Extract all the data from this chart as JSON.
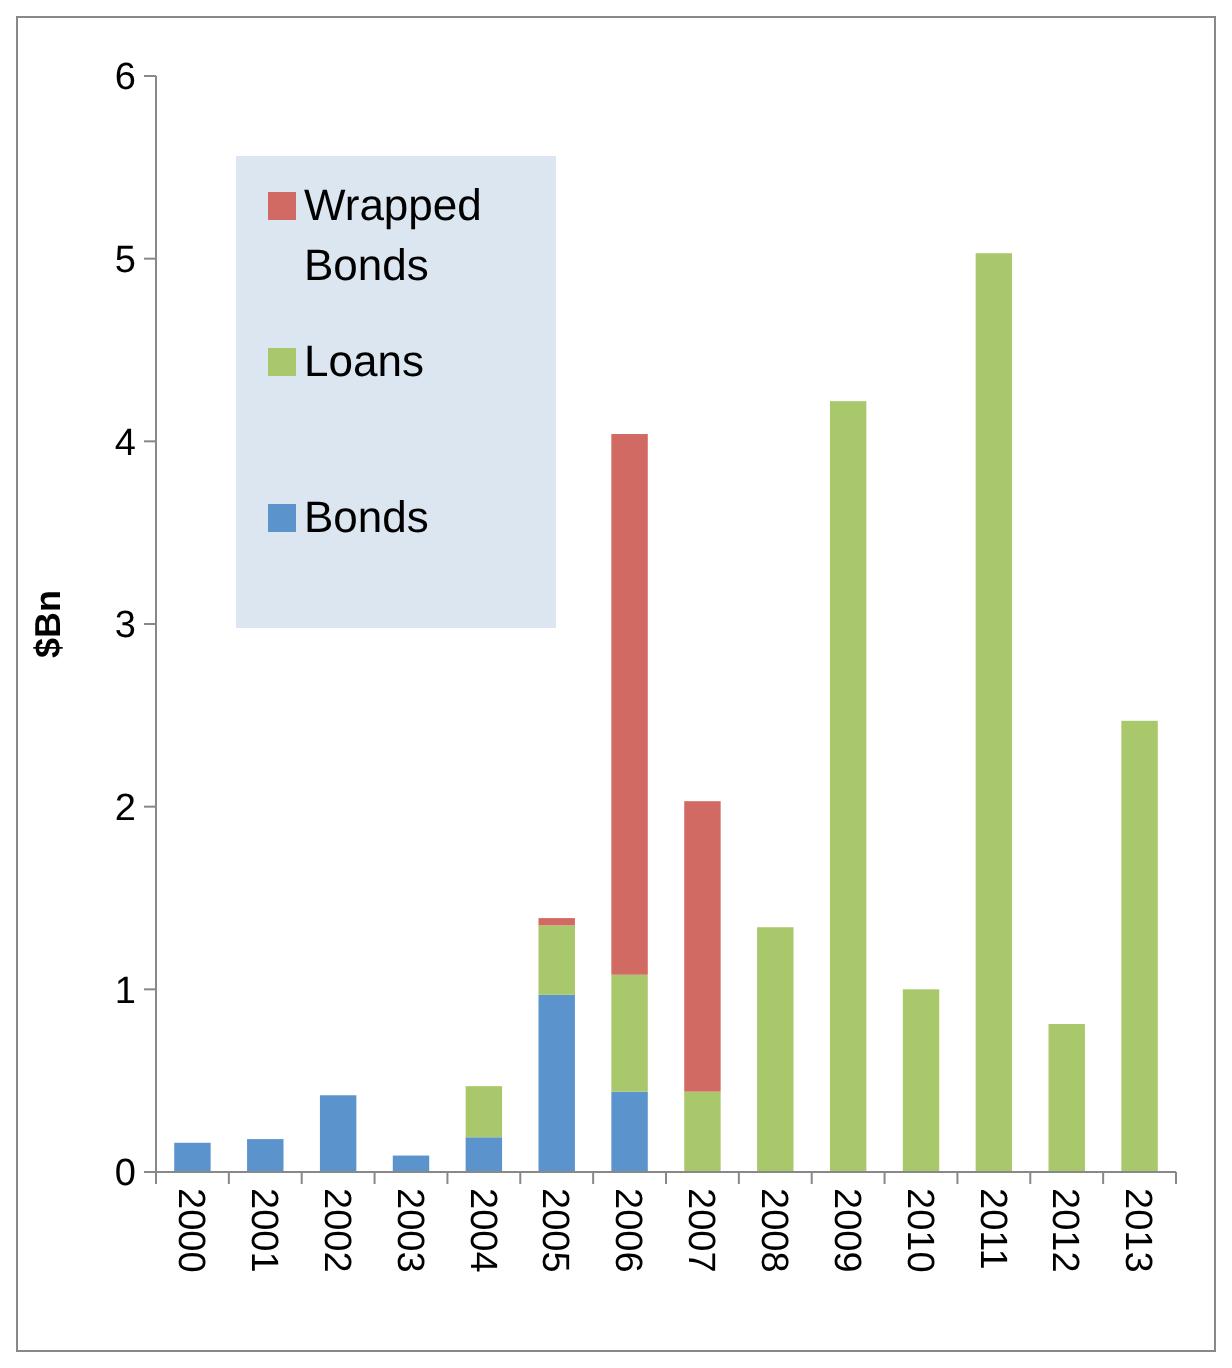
{
  "chart_data": {
    "type": "bar",
    "stacked": true,
    "ylabel": "$Bn",
    "categories": [
      "2000",
      "2001",
      "2002",
      "2003",
      "2004",
      "2005",
      "2006",
      "2007",
      "2008",
      "2009",
      "2010",
      "2011",
      "2012",
      "2013"
    ],
    "series": [
      {
        "name": "Bonds",
        "color": "#5b93cc",
        "values": [
          0.16,
          0.18,
          0.42,
          0.09,
          0.19,
          0.97,
          0.44,
          null,
          null,
          null,
          null,
          null,
          null,
          null
        ]
      },
      {
        "name": "Loans",
        "color": "#a9c86b",
        "values": [
          null,
          null,
          null,
          null,
          0.28,
          0.38,
          0.64,
          0.44,
          1.34,
          4.22,
          1.0,
          5.03,
          0.81,
          2.47
        ]
      },
      {
        "name": "Wrapped Bonds",
        "color": "#d06a62",
        "values": [
          null,
          null,
          null,
          null,
          null,
          0.04,
          2.96,
          1.59,
          null,
          null,
          null,
          null,
          null,
          null
        ]
      }
    ],
    "ylim": [
      0,
      6
    ],
    "yticks": [
      0,
      1,
      2,
      3,
      4,
      5,
      6
    ],
    "legend": "top left"
  }
}
